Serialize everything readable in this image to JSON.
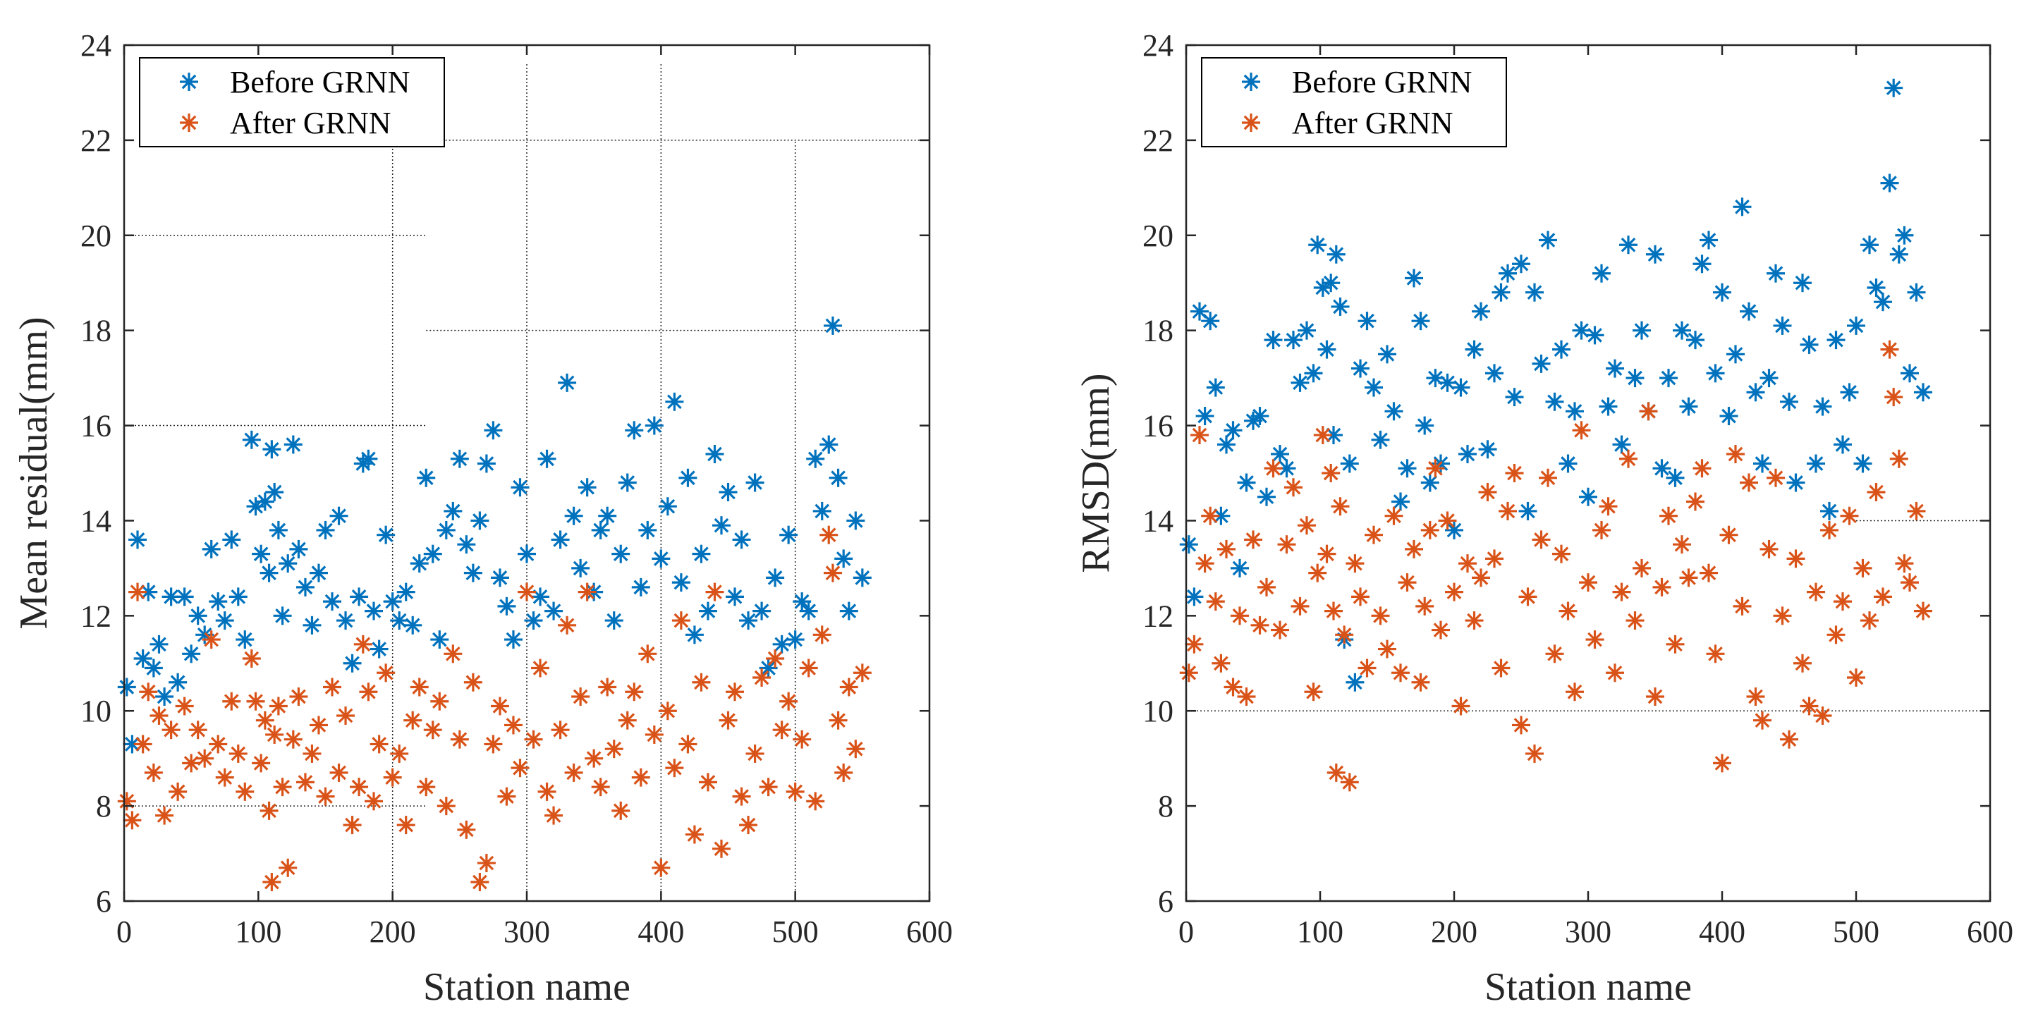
{
  "chart_data": [
    {
      "type": "scatter",
      "xlabel": "Station name",
      "ylabel": "Mean residual(mm)",
      "xlim": [
        0,
        600
      ],
      "ylim": [
        6,
        24
      ],
      "xticks": [
        0,
        100,
        200,
        300,
        400,
        500,
        600
      ],
      "yticks": [
        6,
        8,
        10,
        12,
        14,
        16,
        18,
        20,
        22,
        24
      ],
      "grid": "partial",
      "legend": "top-left",
      "series": [
        {
          "name": "Before GRNN",
          "color": "#0072BD",
          "marker": "asterisk",
          "x": [
            2,
            6,
            10,
            14,
            18,
            22,
            26,
            30,
            35,
            40,
            45,
            50,
            55,
            60,
            65,
            70,
            75,
            80,
            85,
            90,
            95,
            98,
            102,
            105,
            108,
            110,
            112,
            115,
            118,
            122,
            126,
            130,
            135,
            140,
            145,
            150,
            155,
            160,
            165,
            170,
            175,
            178,
            182,
            186,
            190,
            195,
            200,
            205,
            210,
            215,
            220,
            225,
            230,
            235,
            240,
            245,
            250,
            255,
            260,
            265,
            270,
            275,
            280,
            285,
            290,
            295,
            300,
            305,
            310,
            315,
            320,
            325,
            330,
            335,
            340,
            345,
            350,
            355,
            360,
            365,
            370,
            375,
            380,
            385,
            390,
            395,
            400,
            405,
            410,
            415,
            420,
            425,
            430,
            435,
            440,
            445,
            450,
            455,
            460,
            465,
            470,
            475,
            480,
            485,
            490,
            495,
            500,
            505,
            510,
            515,
            520,
            525,
            528,
            532,
            536,
            540,
            545,
            550
          ],
          "y": [
            10.5,
            9.3,
            13.6,
            11.1,
            12.5,
            10.9,
            11.4,
            10.3,
            12.4,
            10.6,
            12.4,
            11.2,
            12.0,
            11.6,
            13.4,
            12.3,
            11.9,
            13.6,
            12.4,
            11.5,
            15.7,
            14.3,
            13.3,
            14.4,
            12.9,
            15.5,
            14.6,
            13.8,
            12.0,
            13.1,
            15.6,
            13.4,
            12.6,
            11.8,
            12.9,
            13.8,
            12.3,
            14.1,
            11.9,
            11.0,
            12.4,
            15.2,
            15.3,
            12.1,
            11.3,
            13.7,
            12.3,
            11.9,
            12.5,
            11.8,
            13.1,
            14.9,
            13.3,
            11.5,
            13.8,
            14.2,
            15.3,
            13.5,
            12.9,
            14.0,
            15.2,
            15.9,
            12.8,
            12.2,
            11.5,
            14.7,
            13.3,
            11.9,
            12.4,
            15.3,
            12.1,
            13.6,
            16.9,
            14.1,
            13.0,
            14.7,
            12.5,
            13.8,
            14.1,
            11.9,
            13.3,
            14.8,
            15.9,
            12.6,
            13.8,
            16.0,
            13.2,
            14.3,
            16.5,
            12.7,
            14.9,
            11.6,
            13.3,
            12.1,
            15.4,
            13.9,
            14.6,
            12.4,
            13.6,
            11.9,
            14.8,
            12.1,
            10.9,
            12.8,
            11.4,
            13.7,
            11.5,
            12.3,
            12.1,
            15.3,
            14.2,
            15.6,
            18.1,
            14.9,
            13.2,
            12.1,
            14.0,
            12.8
          ]
        },
        {
          "name": "After GRNN",
          "color": "#D95319",
          "marker": "asterisk",
          "x": [
            2,
            6,
            10,
            14,
            18,
            22,
            26,
            30,
            35,
            40,
            45,
            50,
            55,
            60,
            65,
            70,
            75,
            80,
            85,
            90,
            95,
            98,
            102,
            105,
            108,
            110,
            112,
            115,
            118,
            122,
            126,
            130,
            135,
            140,
            145,
            150,
            155,
            160,
            165,
            170,
            175,
            178,
            182,
            186,
            190,
            195,
            200,
            205,
            210,
            215,
            220,
            225,
            230,
            235,
            240,
            245,
            250,
            255,
            260,
            265,
            270,
            275,
            280,
            285,
            290,
            295,
            300,
            305,
            310,
            315,
            320,
            325,
            330,
            335,
            340,
            345,
            350,
            355,
            360,
            365,
            370,
            375,
            380,
            385,
            390,
            395,
            400,
            405,
            410,
            415,
            420,
            425,
            430,
            435,
            440,
            445,
            450,
            455,
            460,
            465,
            470,
            475,
            480,
            485,
            490,
            495,
            500,
            505,
            510,
            515,
            520,
            525,
            528,
            532,
            536,
            540,
            545,
            550
          ],
          "y": [
            8.1,
            7.7,
            12.5,
            9.3,
            10.4,
            8.7,
            9.9,
            7.8,
            9.6,
            8.3,
            10.1,
            8.9,
            9.6,
            9.0,
            11.5,
            9.3,
            8.6,
            10.2,
            9.1,
            8.3,
            11.1,
            10.2,
            8.9,
            9.8,
            7.9,
            6.4,
            9.5,
            10.1,
            8.4,
            6.7,
            9.4,
            10.3,
            8.5,
            9.1,
            9.7,
            8.2,
            10.5,
            8.7,
            9.9,
            7.6,
            8.4,
            11.4,
            10.4,
            8.1,
            9.3,
            10.8,
            8.6,
            9.1,
            7.6,
            9.8,
            10.5,
            8.4,
            9.6,
            10.2,
            8.0,
            11.2,
            9.4,
            7.5,
            10.6,
            6.4,
            6.8,
            9.3,
            10.1,
            8.2,
            9.7,
            8.8,
            12.5,
            9.4,
            10.9,
            8.3,
            7.8,
            9.6,
            11.8,
            8.7,
            10.3,
            12.5,
            9.0,
            8.4,
            10.5,
            9.2,
            7.9,
            9.8,
            10.4,
            8.6,
            11.2,
            9.5,
            6.7,
            10.0,
            8.8,
            11.9,
            9.3,
            7.4,
            10.6,
            8.5,
            12.5,
            7.1,
            9.8,
            10.4,
            8.2,
            7.6,
            9.1,
            10.7,
            8.4,
            11.1,
            9.6,
            10.2,
            8.3,
            9.4,
            10.9,
            8.1,
            11.6,
            13.7,
            12.9,
            9.8,
            8.7,
            10.5,
            9.2,
            10.8
          ]
        }
      ]
    },
    {
      "type": "scatter",
      "xlabel": "Station name",
      "ylabel": "RMSD(mm)",
      "xlim": [
        0,
        600
      ],
      "ylim": [
        6,
        24
      ],
      "xticks": [
        0,
        100,
        200,
        300,
        400,
        500,
        600
      ],
      "yticks": [
        6,
        8,
        10,
        12,
        14,
        16,
        18,
        20,
        22,
        24
      ],
      "grid": "partial",
      "legend": "top-left",
      "series": [
        {
          "name": "Before GRNN",
          "color": "#0072BD",
          "marker": "asterisk",
          "x": [
            2,
            6,
            10,
            14,
            18,
            22,
            26,
            30,
            35,
            40,
            45,
            50,
            55,
            60,
            65,
            70,
            75,
            80,
            85,
            90,
            95,
            98,
            102,
            105,
            108,
            110,
            112,
            115,
            118,
            122,
            126,
            130,
            135,
            140,
            145,
            150,
            155,
            160,
            165,
            170,
            175,
            178,
            182,
            186,
            190,
            195,
            200,
            205,
            210,
            215,
            220,
            225,
            230,
            235,
            240,
            245,
            250,
            255,
            260,
            265,
            270,
            275,
            280,
            285,
            290,
            295,
            300,
            305,
            310,
            315,
            320,
            325,
            330,
            335,
            340,
            345,
            350,
            355,
            360,
            365,
            370,
            375,
            380,
            385,
            390,
            395,
            400,
            405,
            410,
            415,
            420,
            425,
            430,
            435,
            440,
            445,
            450,
            455,
            460,
            465,
            470,
            475,
            480,
            485,
            490,
            495,
            500,
            505,
            510,
            515,
            520,
            525,
            528,
            532,
            536,
            540,
            545,
            550
          ],
          "y": [
            13.5,
            12.4,
            18.4,
            16.2,
            18.2,
            16.8,
            14.1,
            15.6,
            15.9,
            13.0,
            14.8,
            16.1,
            16.2,
            14.5,
            17.8,
            15.4,
            15.1,
            17.8,
            16.9,
            18.0,
            17.1,
            19.8,
            18.9,
            17.6,
            19.0,
            15.8,
            19.6,
            18.5,
            11.5,
            15.2,
            10.6,
            17.2,
            18.2,
            16.8,
            15.7,
            17.5,
            16.3,
            14.4,
            15.1,
            19.1,
            18.2,
            16.0,
            14.8,
            17.0,
            15.2,
            16.9,
            13.8,
            16.8,
            15.4,
            17.6,
            18.4,
            15.5,
            17.1,
            18.8,
            19.2,
            16.6,
            19.4,
            14.2,
            18.8,
            17.3,
            19.9,
            16.5,
            17.6,
            15.2,
            16.3,
            18.0,
            14.5,
            17.9,
            19.2,
            16.4,
            17.2,
            15.6,
            19.8,
            17.0,
            18.0,
            16.3,
            19.6,
            15.1,
            17.0,
            14.9,
            18.0,
            16.4,
            17.8,
            19.4,
            19.9,
            17.1,
            18.8,
            16.2,
            17.5,
            20.6,
            18.4,
            16.7,
            15.2,
            17.0,
            19.2,
            18.1,
            16.5,
            14.8,
            19.0,
            17.7,
            15.2,
            16.4,
            14.2,
            17.8,
            15.6,
            16.7,
            18.1,
            15.2,
            19.8,
            18.9,
            18.6,
            21.1,
            23.1,
            19.6,
            20.0,
            17.1,
            18.8,
            16.7
          ]
        },
        {
          "name": "After GRNN",
          "color": "#D95319",
          "marker": "asterisk",
          "x": [
            2,
            6,
            10,
            14,
            18,
            22,
            26,
            30,
            35,
            40,
            45,
            50,
            55,
            60,
            65,
            70,
            75,
            80,
            85,
            90,
            95,
            98,
            102,
            105,
            108,
            110,
            112,
            115,
            118,
            122,
            126,
            130,
            135,
            140,
            145,
            150,
            155,
            160,
            165,
            170,
            175,
            178,
            182,
            186,
            190,
            195,
            200,
            205,
            210,
            215,
            220,
            225,
            230,
            235,
            240,
            245,
            250,
            255,
            260,
            265,
            270,
            275,
            280,
            285,
            290,
            295,
            300,
            305,
            310,
            315,
            320,
            325,
            330,
            335,
            340,
            345,
            350,
            355,
            360,
            365,
            370,
            375,
            380,
            385,
            390,
            395,
            400,
            405,
            410,
            415,
            420,
            425,
            430,
            435,
            440,
            445,
            450,
            455,
            460,
            465,
            470,
            475,
            480,
            485,
            490,
            495,
            500,
            505,
            510,
            515,
            520,
            525,
            528,
            532,
            536,
            540,
            545,
            550
          ],
          "y": [
            10.8,
            11.4,
            15.8,
            13.1,
            14.1,
            12.3,
            11.0,
            13.4,
            10.5,
            12.0,
            10.3,
            13.6,
            11.8,
            12.6,
            15.1,
            11.7,
            13.5,
            14.7,
            12.2,
            13.9,
            10.4,
            12.9,
            15.8,
            13.3,
            15.0,
            12.1,
            8.7,
            14.3,
            11.6,
            8.5,
            13.1,
            12.4,
            10.9,
            13.7,
            12.0,
            11.3,
            14.1,
            10.8,
            12.7,
            13.4,
            10.6,
            12.2,
            13.8,
            15.1,
            11.7,
            14.0,
            12.5,
            10.1,
            13.1,
            11.9,
            12.8,
            14.6,
            13.2,
            10.9,
            14.2,
            15.0,
            9.7,
            12.4,
            9.1,
            13.6,
            14.9,
            11.2,
            13.3,
            12.1,
            10.4,
            15.9,
            12.7,
            11.5,
            13.8,
            14.3,
            10.8,
            12.5,
            15.3,
            11.9,
            13.0,
            16.3,
            10.3,
            12.6,
            14.1,
            11.4,
            13.5,
            12.8,
            14.4,
            15.1,
            12.9,
            11.2,
            8.9,
            13.7,
            15.4,
            12.2,
            14.8,
            10.3,
            9.8,
            13.4,
            14.9,
            12.0,
            9.4,
            13.2,
            11.0,
            10.1,
            12.5,
            9.9,
            13.8,
            11.6,
            12.3,
            14.1,
            10.7,
            13.0,
            11.9,
            14.6,
            12.4,
            17.6,
            16.6,
            15.3,
            13.1,
            12.7,
            14.2,
            12.1
          ]
        }
      ]
    }
  ]
}
